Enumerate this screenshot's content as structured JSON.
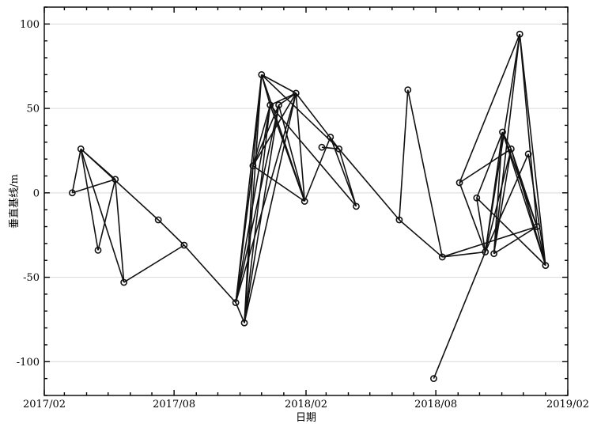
{
  "chart_data": {
    "type": "scatter",
    "title": "",
    "xlabel": "日期",
    "ylabel": "垂直基线/m",
    "xlim": [
      "2017-02-01",
      "2019-02-01"
    ],
    "ylim": [
      -120,
      110
    ],
    "grid": true,
    "x_ticks": [
      {
        "date": "2017-02-01",
        "label": "2017/02"
      },
      {
        "date": "2017-08-01",
        "label": "2017/08"
      },
      {
        "date": "2018-02-01",
        "label": "2018/02"
      },
      {
        "date": "2018-08-01",
        "label": "2018/08"
      },
      {
        "date": "2019-02-01",
        "label": "2019/02"
      }
    ],
    "y_ticks": [
      100,
      50,
      0,
      -50,
      -100
    ],
    "points": [
      {
        "id": 1,
        "date": "2017-03-12",
        "value": 0
      },
      {
        "id": 2,
        "date": "2017-03-24",
        "value": 26
      },
      {
        "id": 3,
        "date": "2017-04-17",
        "value": -34
      },
      {
        "id": 4,
        "date": "2017-05-11",
        "value": 8
      },
      {
        "id": 5,
        "date": "2017-05-23",
        "value": -53
      },
      {
        "id": 6,
        "date": "2017-07-10",
        "value": -16
      },
      {
        "id": 7,
        "date": "2017-08-15",
        "value": -31
      },
      {
        "id": 8,
        "date": "2017-10-26",
        "value": -65
      },
      {
        "id": 9,
        "date": "2017-11-07",
        "value": -77
      },
      {
        "id": 10,
        "date": "2017-11-19",
        "value": 16
      },
      {
        "id": 11,
        "date": "2017-12-01",
        "value": 70
      },
      {
        "id": 12,
        "date": "2017-12-13",
        "value": 52
      },
      {
        "id": 13,
        "date": "2017-12-25",
        "value": 52
      },
      {
        "id": 14,
        "date": "2018-01-18",
        "value": 59
      },
      {
        "id": 15,
        "date": "2018-01-30",
        "value": -5
      },
      {
        "id": 16,
        "date": "2018-02-23",
        "value": 27
      },
      {
        "id": 17,
        "date": "2018-03-07",
        "value": 33
      },
      {
        "id": 18,
        "date": "2018-03-19",
        "value": 26
      },
      {
        "id": 19,
        "date": "2018-04-12",
        "value": -8
      },
      {
        "id": 20,
        "date": "2018-06-11",
        "value": -16
      },
      {
        "id": 21,
        "date": "2018-06-23",
        "value": 61
      },
      {
        "id": 22,
        "date": "2018-07-29",
        "value": -110
      },
      {
        "id": 23,
        "date": "2018-08-10",
        "value": -38
      },
      {
        "id": 24,
        "date": "2018-09-03",
        "value": 6
      },
      {
        "id": 25,
        "date": "2018-09-27",
        "value": -3
      },
      {
        "id": 26,
        "date": "2018-10-09",
        "value": -35
      },
      {
        "id": 27,
        "date": "2018-10-21",
        "value": -36
      },
      {
        "id": 28,
        "date": "2018-11-02",
        "value": 36
      },
      {
        "id": 29,
        "date": "2018-11-14",
        "value": 26
      },
      {
        "id": 30,
        "date": "2018-11-26",
        "value": 94
      },
      {
        "id": 31,
        "date": "2018-12-08",
        "value": 23
      },
      {
        "id": 32,
        "date": "2018-12-20",
        "value": -20
      },
      {
        "id": 33,
        "date": "2019-01-01",
        "value": -43
      }
    ],
    "edges": [
      [
        1,
        2
      ],
      [
        1,
        4
      ],
      [
        2,
        3
      ],
      [
        2,
        4
      ],
      [
        2,
        5
      ],
      [
        3,
        4
      ],
      [
        4,
        5
      ],
      [
        5,
        7
      ],
      [
        6,
        7
      ],
      [
        2,
        6
      ],
      [
        7,
        8
      ],
      [
        8,
        9
      ],
      [
        8,
        10
      ],
      [
        8,
        11
      ],
      [
        8,
        12
      ],
      [
        8,
        13
      ],
      [
        8,
        14
      ],
      [
        9,
        10
      ],
      [
        9,
        11
      ],
      [
        9,
        12
      ],
      [
        9,
        13
      ],
      [
        9,
        14
      ],
      [
        10,
        11
      ],
      [
        10,
        12
      ],
      [
        10,
        13
      ],
      [
        10,
        14
      ],
      [
        10,
        15
      ],
      [
        11,
        12
      ],
      [
        11,
        14
      ],
      [
        11,
        15
      ],
      [
        11,
        18
      ],
      [
        12,
        14
      ],
      [
        12,
        15
      ],
      [
        13,
        14
      ],
      [
        13,
        15
      ],
      [
        14,
        15
      ],
      [
        14,
        18
      ],
      [
        12,
        19
      ],
      [
        15,
        17
      ],
      [
        16,
        18
      ],
      [
        17,
        19
      ],
      [
        18,
        19
      ],
      [
        18,
        20
      ],
      [
        20,
        21
      ],
      [
        20,
        23
      ],
      [
        21,
        23
      ],
      [
        22,
        26
      ],
      [
        23,
        26
      ],
      [
        23,
        32
      ],
      [
        24,
        26
      ],
      [
        24,
        29
      ],
      [
        24,
        30
      ],
      [
        25,
        26
      ],
      [
        25,
        28
      ],
      [
        25,
        33
      ],
      [
        26,
        28
      ],
      [
        26,
        29
      ],
      [
        26,
        30
      ],
      [
        26,
        31
      ],
      [
        27,
        28
      ],
      [
        27,
        29
      ],
      [
        27,
        30
      ],
      [
        27,
        32
      ],
      [
        28,
        29
      ],
      [
        28,
        32
      ],
      [
        28,
        33
      ],
      [
        29,
        32
      ],
      [
        29,
        33
      ],
      [
        30,
        32
      ],
      [
        30,
        33
      ],
      [
        31,
        33
      ],
      [
        32,
        33
      ]
    ]
  }
}
